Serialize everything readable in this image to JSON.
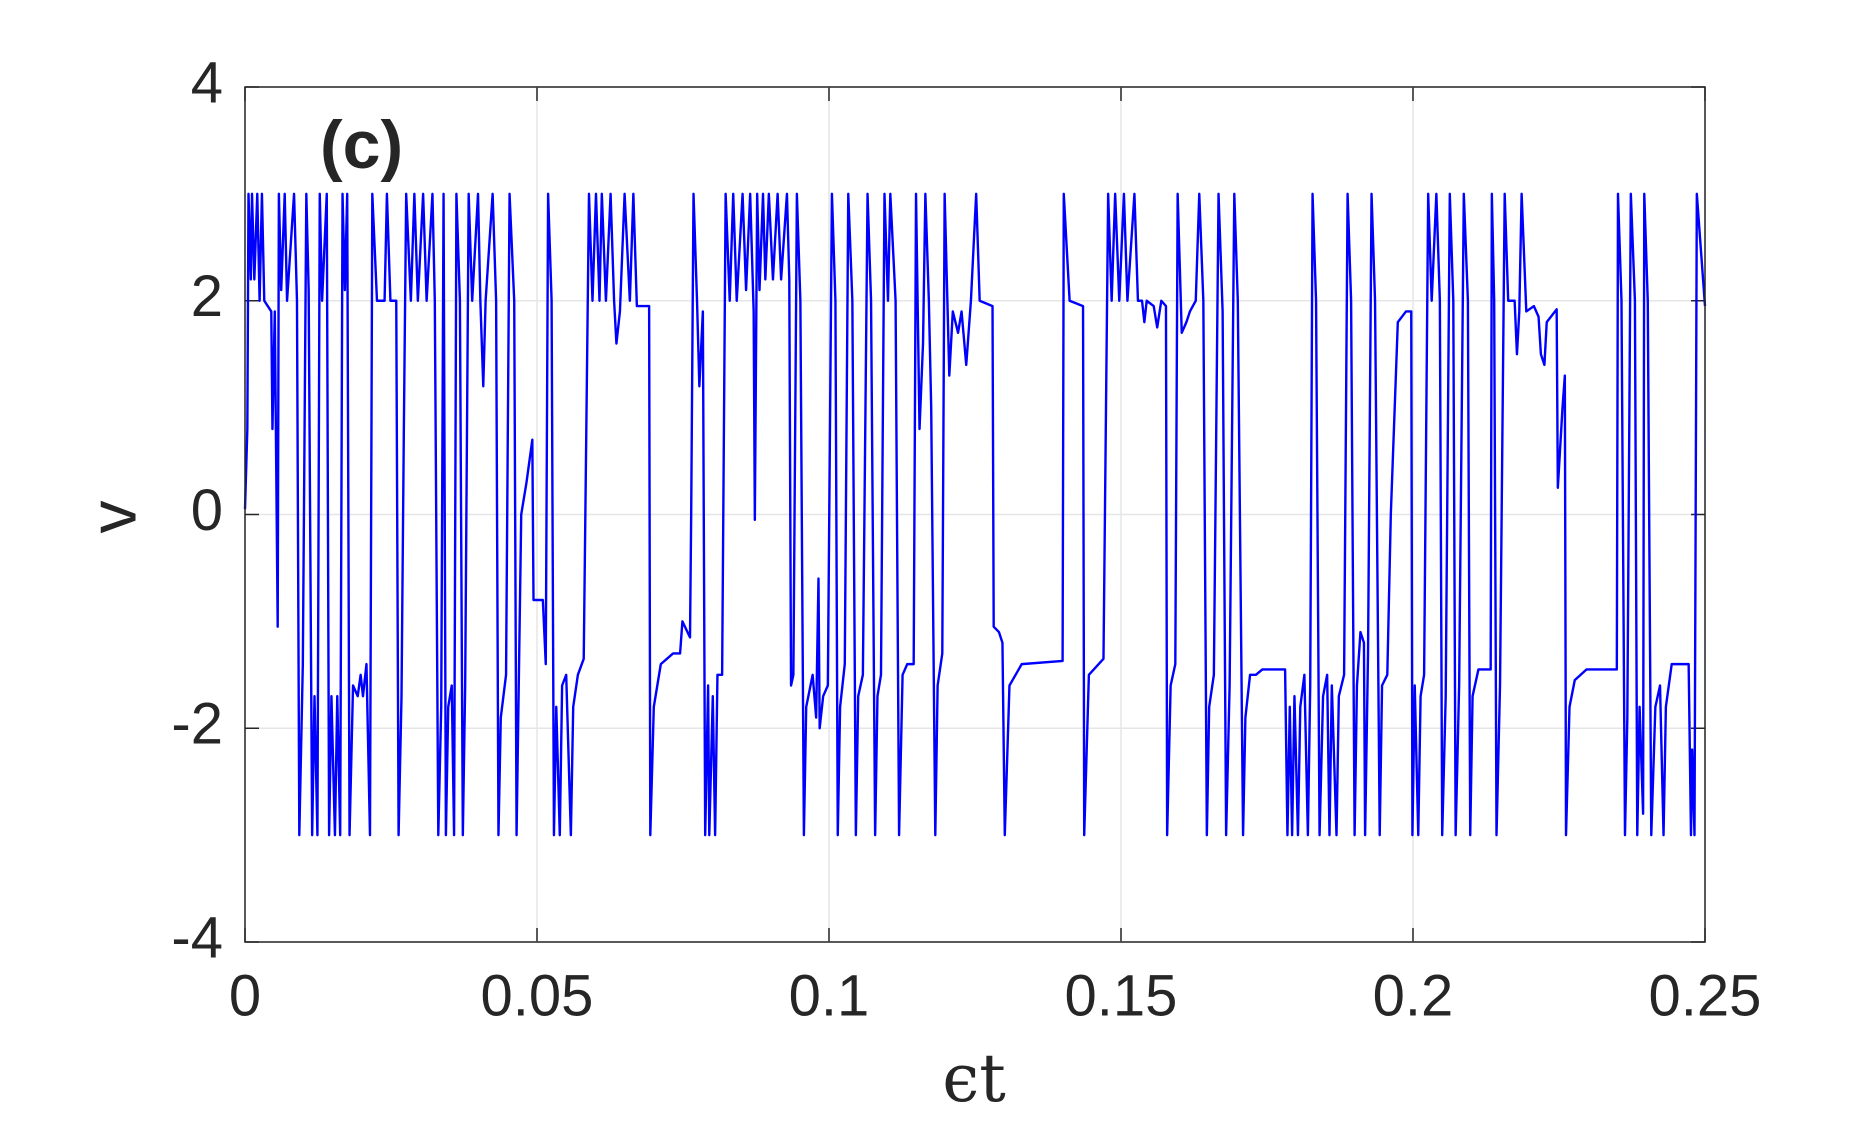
{
  "chart_data": {
    "type": "line",
    "annotation": "(c)",
    "xlabel": "ϵt",
    "ylabel": "v",
    "xlim": [
      0,
      0.25
    ],
    "ylim": [
      -4,
      4
    ],
    "xticks": [
      0,
      0.05,
      0.1,
      0.15,
      0.2,
      0.25
    ],
    "yticks": [
      -4,
      -2,
      0,
      2,
      4
    ],
    "grid": true,
    "series": [
      {
        "color": "#0000ff",
        "x": [
          0,
          0.0004,
          0.0006,
          0.001,
          0.0012,
          0.0016,
          0.0021,
          0.0025,
          0.0029,
          0.0033,
          0.0045,
          0.0047,
          0.0051,
          0.0056,
          0.0058,
          0.0062,
          0.0068,
          0.0072,
          0.0084,
          0.0089,
          0.0093,
          0.0099,
          0.0105,
          0.0109,
          0.0115,
          0.0119,
          0.0124,
          0.0128,
          0.0132,
          0.014,
          0.0144,
          0.0148,
          0.0154,
          0.0158,
          0.0163,
          0.0167,
          0.0171,
          0.0175,
          0.0179,
          0.0185,
          0.0193,
          0.0198,
          0.0202,
          0.0208,
          0.0214,
          0.0218,
          0.0226,
          0.0239,
          0.0243,
          0.0249,
          0.0259,
          0.0263,
          0.0268,
          0.0272,
          0.0276,
          0.0284,
          0.029,
          0.0296,
          0.0305,
          0.0311,
          0.0321,
          0.0325,
          0.0331,
          0.0336,
          0.034,
          0.0344,
          0.0348,
          0.0354,
          0.0358,
          0.0362,
          0.0368,
          0.0373,
          0.0377,
          0.0383,
          0.0389,
          0.0399,
          0.0403,
          0.0408,
          0.0412,
          0.0424,
          0.043,
          0.0434,
          0.0438,
          0.0447,
          0.0453,
          0.0461,
          0.0465,
          0.0469,
          0.0473,
          0.0482,
          0.0492,
          0.0494,
          0.051,
          0.0515,
          0.0519,
          0.0525,
          0.0529,
          0.0533,
          0.0539,
          0.0543,
          0.055,
          0.0558,
          0.0562,
          0.057,
          0.058,
          0.0589,
          0.0595,
          0.0601,
          0.0607,
          0.0611,
          0.0618,
          0.0626,
          0.0632,
          0.0636,
          0.0642,
          0.065,
          0.0659,
          0.0665,
          0.0671,
          0.0692,
          0.0694,
          0.07,
          0.0712,
          0.0733,
          0.0745,
          0.0749,
          0.0762,
          0.0764,
          0.0768,
          0.0774,
          0.0778,
          0.0784,
          0.0788,
          0.0793,
          0.0795,
          0.0801,
          0.0805,
          0.0809,
          0.0817,
          0.0823,
          0.083,
          0.0836,
          0.0842,
          0.0852,
          0.0858,
          0.0865,
          0.0871,
          0.0873,
          0.0877,
          0.0881,
          0.0887,
          0.0891,
          0.0897,
          0.0904,
          0.0912,
          0.0918,
          0.0928,
          0.0932,
          0.0935,
          0.0939,
          0.0945,
          0.0951,
          0.0957,
          0.0961,
          0.0972,
          0.0978,
          0.0982,
          0.0984,
          0.099,
          0.0998,
          0.1005,
          0.1011,
          0.1015,
          0.1019,
          0.1027,
          0.1033,
          0.104,
          0.1046,
          0.105,
          0.1058,
          0.1066,
          0.1072,
          0.1079,
          0.1083,
          0.1089,
          0.1095,
          0.1101,
          0.1105,
          0.1114,
          0.112,
          0.1126,
          0.1134,
          0.1145,
          0.1149,
          0.1155,
          0.1161,
          0.1165,
          0.1171,
          0.1175,
          0.1182,
          0.1186,
          0.1194,
          0.1198,
          0.1206,
          0.1212,
          0.1221,
          0.1227,
          0.1235,
          0.1243,
          0.1252,
          0.1258,
          0.128,
          0.1282,
          0.1291,
          0.1297,
          0.1301,
          0.1309,
          0.133,
          0.14,
          0.1402,
          0.1412,
          0.1435,
          0.1437,
          0.1445,
          0.147,
          0.1478,
          0.1484,
          0.149,
          0.1497,
          0.1505,
          0.1511,
          0.1523,
          0.1529,
          0.1536,
          0.154,
          0.1544,
          0.1556,
          0.1562,
          0.1569,
          0.1577,
          0.1579,
          0.1585,
          0.1593,
          0.1597,
          0.1604,
          0.1612,
          0.1618,
          0.1628,
          0.1634,
          0.1641,
          0.1647,
          0.1651,
          0.1659,
          0.1667,
          0.1674,
          0.168,
          0.1686,
          0.1694,
          0.17,
          0.1709,
          0.1713,
          0.1721,
          0.1731,
          0.1742,
          0.1762,
          0.1781,
          0.1785,
          0.1789,
          0.1793,
          0.1797,
          0.1803,
          0.1807,
          0.1814,
          0.182,
          0.1824,
          0.1828,
          0.1834,
          0.184,
          0.1846,
          0.1853,
          0.1857,
          0.1861,
          0.1869,
          0.1873,
          0.1882,
          0.1888,
          0.1894,
          0.19,
          0.1904,
          0.191,
          0.1916,
          0.1918,
          0.1923,
          0.1929,
          0.1935,
          0.1943,
          0.1947,
          0.1956,
          0.1962,
          0.1974,
          0.1988,
          0.1997,
          0.1999,
          0.2003,
          0.2009,
          0.2013,
          0.2019,
          0.2026,
          0.2032,
          0.204,
          0.2046,
          0.205,
          0.2056,
          0.2063,
          0.2069,
          0.2073,
          0.2079,
          0.2087,
          0.2094,
          0.2098,
          0.2102,
          0.2112,
          0.2133,
          0.2135,
          0.2139,
          0.2143,
          0.2149,
          0.2157,
          0.2163,
          0.2174,
          0.2178,
          0.2182,
          0.2186,
          0.2194,
          0.2207,
          0.2215,
          0.2219,
          0.2225,
          0.2229,
          0.2246,
          0.2248,
          0.2256,
          0.226,
          0.2262,
          0.2268,
          0.2277,
          0.2297,
          0.2349,
          0.2351,
          0.2357,
          0.2363,
          0.2367,
          0.2373,
          0.238,
          0.2384,
          0.2388,
          0.2394,
          0.2396,
          0.2402,
          0.2408,
          0.2415,
          0.2423,
          0.2429,
          0.2433,
          0.2443,
          0.2458,
          0.2462,
          0.2472,
          0.2476,
          0.2478,
          0.2482,
          0.2486,
          0.25
        ],
        "values": [
          0.05,
          0.8,
          3,
          2.2,
          3,
          2.2,
          3,
          2.0,
          3,
          2.0,
          1.9,
          0.8,
          1.9,
          -1.05,
          3,
          2.1,
          3,
          2.0,
          3,
          2.0,
          -3,
          -1.4,
          3,
          2.1,
          -3,
          -1.7,
          -3,
          3,
          2.0,
          3,
          -3,
          -1.7,
          -3,
          -1.7,
          -3,
          3,
          2.1,
          3,
          -3,
          -1.6,
          -1.7,
          -1.5,
          -1.7,
          -1.4,
          -3,
          3,
          2.0,
          2.0,
          3,
          2.0,
          2.0,
          -3,
          -1.7,
          0.8,
          3,
          2.0,
          3,
          2.0,
          3,
          2.0,
          3,
          2.0,
          -3,
          -1.8,
          3,
          -3,
          -1.8,
          -1.6,
          -3,
          3,
          2.0,
          -3,
          -1.6,
          3,
          2.0,
          3,
          2.0,
          1.2,
          2.0,
          3,
          2.0,
          -3,
          -1.9,
          -1.5,
          3,
          2.0,
          -3,
          -1.5,
          0,
          0.3,
          0.7,
          -0.8,
          -0.8,
          -1.4,
          3,
          2.0,
          -3,
          -1.8,
          -3,
          -1.6,
          -1.5,
          -3,
          -1.8,
          -1.5,
          -1.35,
          3,
          2.0,
          3,
          2.0,
          3,
          2.0,
          3,
          2.0,
          1.6,
          1.9,
          3,
          2.0,
          3,
          1.95,
          1.95,
          -3,
          -1.8,
          -1.4,
          -1.3,
          -1.3,
          -1.0,
          -1.15,
          0,
          3,
          2.0,
          1.2,
          1.9,
          -3,
          -1.6,
          -3,
          -1.7,
          -3,
          -1.5,
          -1.5,
          3,
          2.0,
          3,
          2.0,
          3,
          2.1,
          3,
          1.9,
          -0.05,
          3,
          2.1,
          3,
          2.2,
          3,
          2.2,
          3,
          2.2,
          3,
          2.2,
          -1.6,
          -1.5,
          3,
          2.0,
          -3,
          -1.8,
          -1.5,
          -1.9,
          -0.6,
          -2.0,
          -1.7,
          -1.6,
          3,
          2.0,
          -3,
          -1.8,
          -1.4,
          3,
          2.0,
          -3,
          -1.7,
          -1.5,
          3,
          2.0,
          -3,
          -1.7,
          -1.5,
          3,
          2.0,
          3,
          2.0,
          -3,
          -1.5,
          -1.4,
          -1.4,
          3,
          0.8,
          1.6,
          3,
          2.0,
          1.0,
          -3,
          -1.6,
          -1.3,
          3,
          1.3,
          1.9,
          1.7,
          1.9,
          1.4,
          2.0,
          3,
          2.0,
          1.95,
          -1.05,
          -1.1,
          -1.2,
          -3,
          -1.6,
          -1.4,
          -1.37,
          3,
          2.0,
          1.95,
          -3,
          -1.5,
          -1.35,
          3,
          2.0,
          3,
          2.0,
          3,
          2.0,
          3,
          2.0,
          2.0,
          1.8,
          2.0,
          1.95,
          1.75,
          2.0,
          1.95,
          -3,
          -1.6,
          -1.4,
          3,
          1.7,
          1.8,
          1.9,
          2.0,
          3,
          2.0,
          -3,
          -1.8,
          -1.5,
          3,
          1.9,
          -3,
          -1.6,
          3,
          2.0,
          -3,
          -1.9,
          -1.5,
          -1.5,
          -1.45,
          -1.45,
          -1.45,
          -3,
          -1.8,
          -3,
          -1.7,
          -3,
          -1.8,
          -1.5,
          -3,
          -1.6,
          3,
          2.0,
          -3,
          -1.7,
          -1.5,
          -3,
          -1.6,
          -3,
          -1.7,
          -1.5,
          3,
          2.0,
          -3,
          -1.6,
          -1.1,
          -1.2,
          -3,
          -1.3,
          3,
          2.0,
          -3,
          -1.6,
          -1.5,
          0,
          1.8,
          1.9,
          1.9,
          -3,
          -1.6,
          -3,
          -1.7,
          -1.5,
          3,
          2.0,
          3,
          2.0,
          -3,
          -1.7,
          3,
          2.0,
          -3,
          -1.6,
          3,
          2.0,
          -3,
          -1.7,
          -1.45,
          -1.45,
          3,
          2.0,
          -3,
          -1.6,
          3,
          2.0,
          2.0,
          1.5,
          1.9,
          3,
          1.9,
          1.95,
          1.85,
          1.5,
          1.4,
          1.8,
          1.92,
          0.25,
          1.0,
          1.3,
          -3,
          -1.8,
          -1.55,
          -1.45,
          -1.45,
          3,
          2.0,
          -3,
          -1.9,
          3,
          2.0,
          -3,
          -1.8,
          -2.8,
          3,
          2.0,
          -3,
          -1.8,
          -1.6,
          -3,
          -1.8,
          -1.4,
          -1.4,
          -1.4,
          -1.4,
          -3,
          -2.2,
          -3,
          3,
          1.95
        ]
      }
    ]
  }
}
